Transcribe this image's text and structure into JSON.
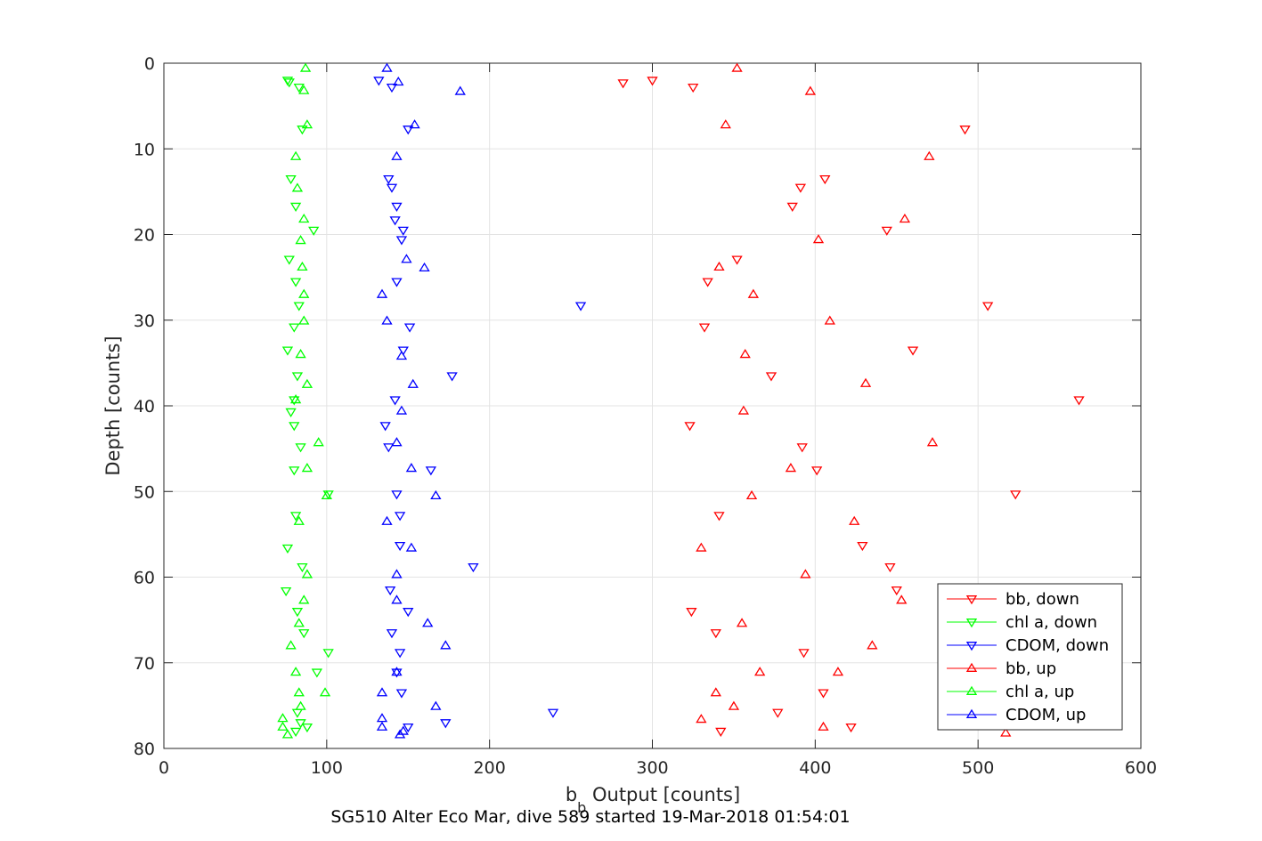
{
  "chart_data": {
    "type": "scatter",
    "xlabel": "b",
    "xlabel_subscript": "b",
    "xlabel_suffix": " Output [counts]",
    "ylabel": "Depth [counts]",
    "caption": "SG510 Alter Eco Mar, dive 589 started 19-Mar-2018 01:54:01",
    "xlim": [
      0,
      600
    ],
    "ylim": [
      0,
      80
    ],
    "y_reversed": true,
    "grid": true,
    "legend_position": "lower-right",
    "x_ticks": [
      0,
      100,
      200,
      300,
      400,
      500,
      600
    ],
    "y_ticks": [
      0,
      10,
      20,
      30,
      40,
      50,
      60,
      70,
      80
    ],
    "series": [
      {
        "name": "bb, down",
        "color": "#ff0000",
        "marker": "triangle-down",
        "points": [
          [
            282,
            2.3
          ],
          [
            300,
            2
          ],
          [
            325,
            2.8
          ],
          [
            492,
            7.7
          ],
          [
            406,
            13.5
          ],
          [
            391,
            14.5
          ],
          [
            386,
            16.7
          ],
          [
            444,
            19.5
          ],
          [
            352,
            22.9
          ],
          [
            334,
            25.5
          ],
          [
            506,
            28.3
          ],
          [
            332,
            30.8
          ],
          [
            460,
            33.5
          ],
          [
            373,
            36.5
          ],
          [
            562,
            39.3
          ],
          [
            323,
            42.3
          ],
          [
            392,
            44.8
          ],
          [
            401,
            47.5
          ],
          [
            523,
            50.3
          ],
          [
            341,
            52.8
          ],
          [
            429,
            56.3
          ],
          [
            446,
            58.8
          ],
          [
            450,
            61.5
          ],
          [
            324,
            64
          ],
          [
            339,
            66.5
          ],
          [
            393,
            68.8
          ],
          [
            405,
            73.5
          ],
          [
            377,
            75.8
          ],
          [
            422,
            77.5
          ],
          [
            342,
            78
          ]
        ]
      },
      {
        "name": "chl a, down",
        "color": "#00ff00",
        "marker": "triangle-down",
        "points": [
          [
            76,
            2
          ],
          [
            77,
            2.2
          ],
          [
            83,
            2.8
          ],
          [
            85,
            7.7
          ],
          [
            78,
            13.5
          ],
          [
            81,
            16.7
          ],
          [
            92,
            19.5
          ],
          [
            77,
            22.9
          ],
          [
            81,
            25.5
          ],
          [
            83,
            28.3
          ],
          [
            80,
            30.8
          ],
          [
            76,
            33.5
          ],
          [
            82,
            36.5
          ],
          [
            80,
            39.3
          ],
          [
            78,
            40.7
          ],
          [
            80,
            42.3
          ],
          [
            84,
            44.8
          ],
          [
            80,
            47.5
          ],
          [
            101,
            50.3
          ],
          [
            81,
            52.8
          ],
          [
            76,
            56.6
          ],
          [
            85,
            58.8
          ],
          [
            75,
            61.6
          ],
          [
            82,
            64
          ],
          [
            86,
            66.5
          ],
          [
            101,
            68.8
          ],
          [
            94,
            71.1
          ],
          [
            82,
            75.8
          ],
          [
            84,
            77
          ],
          [
            88,
            77.5
          ],
          [
            81,
            78
          ]
        ]
      },
      {
        "name": "CDOM, down",
        "color": "#0000ff",
        "marker": "triangle-down",
        "points": [
          [
            132,
            2
          ],
          [
            140,
            2.8
          ],
          [
            150,
            7.7
          ],
          [
            138,
            13.5
          ],
          [
            140,
            14.5
          ],
          [
            143,
            16.7
          ],
          [
            142,
            18.3
          ],
          [
            147,
            19.5
          ],
          [
            146,
            20.6
          ],
          [
            143,
            25.5
          ],
          [
            256,
            28.3
          ],
          [
            151,
            30.8
          ],
          [
            147,
            33.5
          ],
          [
            177,
            36.5
          ],
          [
            142,
            39.3
          ],
          [
            136,
            42.3
          ],
          [
            138,
            44.8
          ],
          [
            164,
            47.5
          ],
          [
            143,
            50.3
          ],
          [
            145,
            52.8
          ],
          [
            145,
            56.3
          ],
          [
            190,
            58.8
          ],
          [
            139,
            61.5
          ],
          [
            150,
            64
          ],
          [
            140,
            66.5
          ],
          [
            145,
            68.8
          ],
          [
            143,
            71.1
          ],
          [
            146,
            73.5
          ],
          [
            239,
            75.8
          ],
          [
            173,
            77
          ],
          [
            150,
            77.5
          ]
        ]
      },
      {
        "name": "bb, up",
        "color": "#ff0000",
        "marker": "triangle-up",
        "points": [
          [
            352,
            0.6
          ],
          [
            397,
            3.3
          ],
          [
            345,
            7.2
          ],
          [
            470,
            10.9
          ],
          [
            455,
            18.2
          ],
          [
            402,
            20.6
          ],
          [
            341,
            23.8
          ],
          [
            362,
            27
          ],
          [
            409,
            30.1
          ],
          [
            357,
            34
          ],
          [
            431,
            37.4
          ],
          [
            356,
            40.6
          ],
          [
            472,
            44.3
          ],
          [
            385,
            47.3
          ],
          [
            361,
            50.5
          ],
          [
            424,
            53.5
          ],
          [
            330,
            56.6
          ],
          [
            394,
            59.7
          ],
          [
            453,
            62.7
          ],
          [
            355,
            65.4
          ],
          [
            435,
            68
          ],
          [
            366,
            71.1
          ],
          [
            414,
            71.1
          ],
          [
            339,
            73.5
          ],
          [
            350,
            75.1
          ],
          [
            330,
            76.6
          ],
          [
            405,
            77.5
          ],
          [
            517,
            78.2
          ]
        ]
      },
      {
        "name": "chl a, up",
        "color": "#00ff00",
        "marker": "triangle-up",
        "points": [
          [
            87,
            0.6
          ],
          [
            86,
            3.2
          ],
          [
            88,
            7.2
          ],
          [
            81,
            10.9
          ],
          [
            82,
            14.6
          ],
          [
            86,
            18.2
          ],
          [
            84,
            20.7
          ],
          [
            85,
            23.8
          ],
          [
            86,
            27
          ],
          [
            86,
            30.1
          ],
          [
            84,
            34
          ],
          [
            88,
            37.5
          ],
          [
            81,
            39.3
          ],
          [
            95,
            44.3
          ],
          [
            88,
            47.3
          ],
          [
            100,
            50.5
          ],
          [
            83,
            53.5
          ],
          [
            88,
            59.7
          ],
          [
            86,
            62.7
          ],
          [
            83,
            65.4
          ],
          [
            78,
            68
          ],
          [
            81,
            71.1
          ],
          [
            83,
            73.5
          ],
          [
            99,
            73.5
          ],
          [
            84,
            75.1
          ],
          [
            73,
            76.5
          ],
          [
            73,
            77.5
          ],
          [
            76,
            78.4
          ]
        ]
      },
      {
        "name": "CDOM, up",
        "color": "#0000ff",
        "marker": "triangle-up",
        "points": [
          [
            137,
            0.6
          ],
          [
            144,
            2.2
          ],
          [
            182,
            3.3
          ],
          [
            154,
            7.2
          ],
          [
            143,
            10.9
          ],
          [
            160,
            23.9
          ],
          [
            149,
            22.9
          ],
          [
            134,
            27
          ],
          [
            137,
            30.1
          ],
          [
            146,
            34.2
          ],
          [
            153,
            37.5
          ],
          [
            146,
            40.6
          ],
          [
            143,
            44.3
          ],
          [
            152,
            47.3
          ],
          [
            167,
            50.5
          ],
          [
            137,
            53.5
          ],
          [
            152,
            56.6
          ],
          [
            143,
            59.7
          ],
          [
            143,
            62.7
          ],
          [
            162,
            65.4
          ],
          [
            173,
            68
          ],
          [
            143,
            71.1
          ],
          [
            134,
            73.5
          ],
          [
            167,
            75.1
          ],
          [
            134,
            76.5
          ],
          [
            134,
            77.5
          ],
          [
            147,
            78
          ],
          [
            145,
            78.4
          ]
        ]
      }
    ]
  }
}
